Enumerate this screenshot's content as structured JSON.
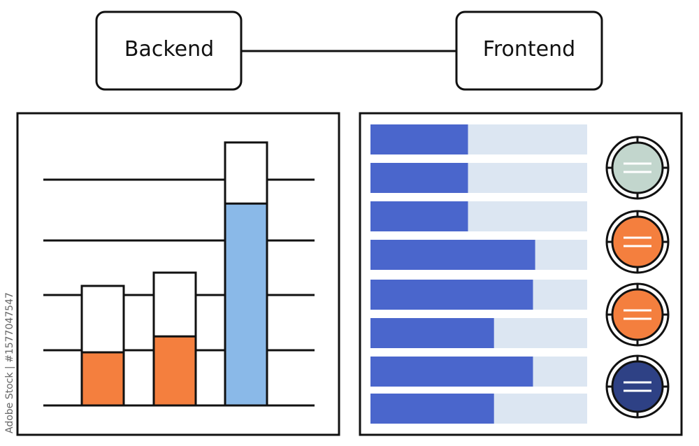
{
  "nodes": {
    "backend": "Backend",
    "frontend": "Frontend"
  },
  "side_caption": "Adobe Stock | #1577047547",
  "backend_chart": {
    "type": "bar",
    "gridlines": 5,
    "bars": [
      {
        "total": 0.45,
        "fill": 0.2,
        "color": "#f47f3e"
      },
      {
        "total": 0.5,
        "fill": 0.26,
        "color": "#f47f3e"
      },
      {
        "total": 0.99,
        "fill": 0.76,
        "color": "#8ab9e8"
      }
    ]
  },
  "frontend_panel": {
    "bar_track_color": "#dce6f2",
    "bar_fill_color": "#4a66cc",
    "bar_fills": [
      0.45,
      0.45,
      0.45,
      0.76,
      0.75,
      0.57,
      0.75,
      0.57
    ],
    "status_icons": [
      {
        "name": "menu-icon-green",
        "color": "#c2d6cd"
      },
      {
        "name": "menu-icon-orange",
        "color": "#f47f3e"
      },
      {
        "name": "menu-icon-orange",
        "color": "#f47f3e"
      },
      {
        "name": "menu-icon-navy",
        "color": "#2e4185"
      }
    ]
  }
}
